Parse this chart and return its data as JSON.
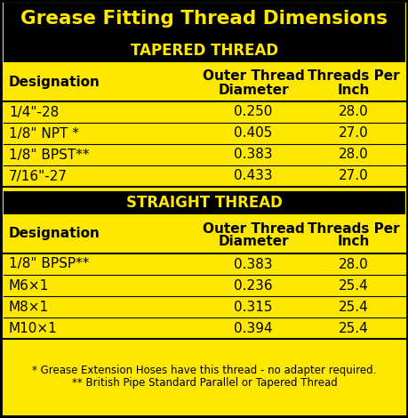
{
  "title": "Grease Fitting Thread Dimensions",
  "title_bg": "#000000",
  "title_fg": "#FFE800",
  "section_bg": "#000000",
  "section_fg": "#FFE800",
  "table_bg": "#FFE800",
  "table_fg": "#000000",
  "tapered_header": "TAPERED THREAD",
  "straight_header": "STRAIGHT THREAD",
  "tapered_rows": [
    [
      "1/4\"-28",
      "0.250",
      "28.0"
    ],
    [
      "1/8\" NPT *",
      "0.405",
      "27.0"
    ],
    [
      "1/8\" BPST**",
      "0.383",
      "28.0"
    ],
    [
      "7/16\"-27",
      "0.433",
      "27.0"
    ]
  ],
  "straight_rows": [
    [
      "1/8\" BPSP**",
      "0.383",
      "28.0"
    ],
    [
      "M6×1",
      "0.236",
      "25.4"
    ],
    [
      "M8×1",
      "0.315",
      "25.4"
    ],
    [
      "M10×1",
      "0.394",
      "25.4"
    ]
  ],
  "footnote1": "* Grease Extension Hoses have this thread - no adapter required.",
  "footnote2": "** British Pipe Standard Parallel or Tapered Thread"
}
